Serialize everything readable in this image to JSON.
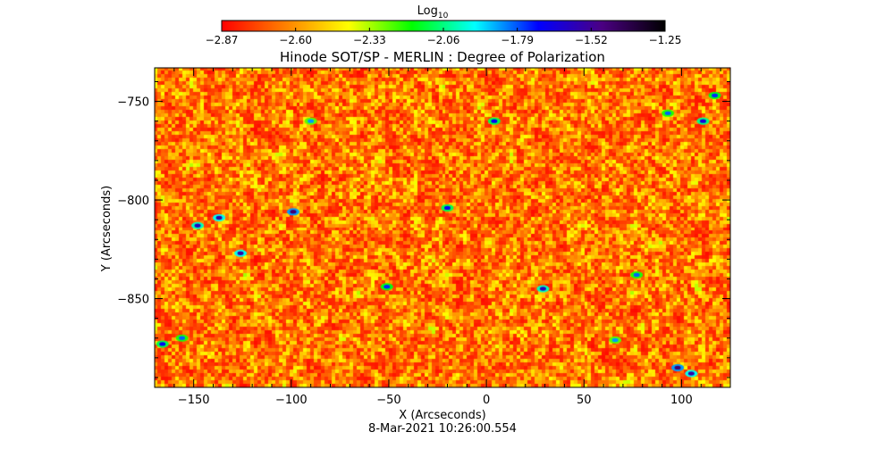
{
  "chart_data": {
    "type": "heatmap",
    "title": "Hinode SOT/SP - MERLIN : Degree of Polarization",
    "xlabel": "X (Arcseconds)",
    "ylabel": "Y (Arcseconds)",
    "timestamp": "8-Mar-2021 10:26:00.554",
    "xlim": [
      -170,
      125
    ],
    "ylim": [
      -895,
      -733
    ],
    "x_ticks": [
      -150,
      -100,
      -50,
      0,
      50,
      100
    ],
    "x_tick_labels": [
      "−150",
      "−100",
      "−50",
      "0",
      "50",
      "100"
    ],
    "y_ticks": [
      -750,
      -800,
      -850
    ],
    "y_tick_labels": [
      "−750",
      "−800",
      "−850"
    ],
    "colorbar": {
      "label_base": "Log",
      "label_sub": "10",
      "min": -2.87,
      "max": -1.25,
      "ticks": [
        -2.87,
        -2.6,
        -2.33,
        -2.06,
        -1.79,
        -1.52,
        -1.25
      ],
      "tick_labels": [
        "−2.87",
        "−2.60",
        "−2.33",
        "−2.06",
        "−1.79",
        "−1.52",
        "−1.25"
      ],
      "colors": [
        "#ff0000",
        "#ff8000",
        "#ffff00",
        "#00ff00",
        "#00ffff",
        "#0000ff",
        "#4b0082",
        "#000000"
      ]
    },
    "field": {
      "description_values": "log10 degree of polarization, mostly between -2.87 and -2.40 with sparse higher-value patches",
      "typical_range": [
        -2.87,
        -2.4
      ],
      "patches": [
        {
          "x": -166,
          "y": -873,
          "value": -1.7
        },
        {
          "x": -156,
          "y": -870,
          "value": -1.8
        },
        {
          "x": -148,
          "y": -813,
          "value": -1.6
        },
        {
          "x": -137,
          "y": -809,
          "value": -1.55
        },
        {
          "x": -126,
          "y": -827,
          "value": -1.55
        },
        {
          "x": -99,
          "y": -806,
          "value": -1.45
        },
        {
          "x": -90,
          "y": -760,
          "value": -1.85
        },
        {
          "x": -51,
          "y": -844,
          "value": -1.75
        },
        {
          "x": -20,
          "y": -804,
          "value": -1.7
        },
        {
          "x": 4,
          "y": -760,
          "value": -1.7
        },
        {
          "x": 29,
          "y": -845,
          "value": -1.6
        },
        {
          "x": 66,
          "y": -871,
          "value": -1.85
        },
        {
          "x": 77,
          "y": -838,
          "value": -1.8
        },
        {
          "x": 93,
          "y": -756,
          "value": -1.8
        },
        {
          "x": 98,
          "y": -885,
          "value": -1.45
        },
        {
          "x": 105,
          "y": -888,
          "value": -1.55
        },
        {
          "x": 111,
          "y": -760,
          "value": -1.65
        },
        {
          "x": 117,
          "y": -747,
          "value": -1.75
        }
      ]
    }
  }
}
